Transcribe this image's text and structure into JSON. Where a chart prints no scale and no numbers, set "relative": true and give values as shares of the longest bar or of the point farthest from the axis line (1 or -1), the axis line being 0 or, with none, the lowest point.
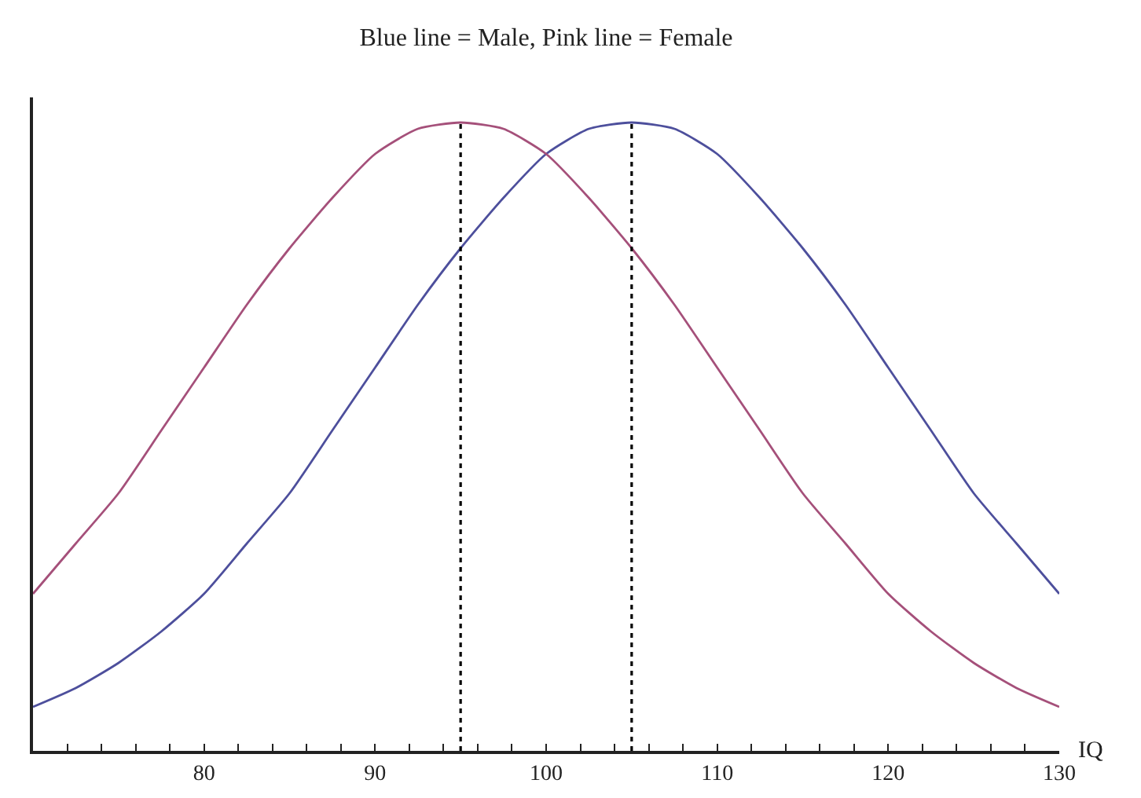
{
  "chart_data": {
    "type": "line",
    "title": "Blue line = Male, Pink line = Female",
    "xlabel": "IQ",
    "relative": true,
    "x": [
      70,
      72.5,
      75,
      77.5,
      80,
      82.5,
      85,
      87.5,
      90,
      92.5,
      95,
      97.5,
      100,
      102.5,
      105,
      107.5,
      110,
      112.5,
      115,
      117.5,
      120,
      122.5,
      125,
      127.5,
      130
    ],
    "series": [
      {
        "color": "#4d4f9c",
        "values": [
          0.07,
          0.1,
          0.14,
          0.19,
          0.25,
          0.33,
          0.41,
          0.51,
          0.61,
          0.71,
          0.8,
          0.88,
          0.95,
          0.99,
          1,
          0.99,
          0.95,
          0.88,
          0.8,
          0.71,
          0.61,
          0.51,
          0.41,
          0.33,
          0.25
        ]
      },
      {
        "color": "#a5507a",
        "values": [
          0.25,
          0.33,
          0.41,
          0.51,
          0.61,
          0.71,
          0.8,
          0.88,
          0.95,
          0.99,
          1,
          0.99,
          0.95,
          0.88,
          0.8,
          0.71,
          0.61,
          0.51,
          0.41,
          0.33,
          0.25,
          0.19,
          0.14,
          0.1,
          0.07
        ]
      }
    ],
    "xlim": [
      70,
      130
    ],
    "xticks": [
      {
        "value": 72,
        "label": null
      },
      {
        "value": 74,
        "label": null
      },
      {
        "value": 76,
        "label": null
      },
      {
        "value": 78,
        "label": null
      },
      80,
      {
        "value": 82,
        "label": null
      },
      {
        "value": 84,
        "label": null
      },
      {
        "value": 86,
        "label": null
      },
      {
        "value": 88,
        "label": null
      },
      90,
      {
        "value": 92,
        "label": null
      },
      {
        "value": 94,
        "label": null
      },
      {
        "value": 96,
        "label": null
      },
      {
        "value": 98,
        "label": null
      },
      100,
      {
        "value": 102,
        "label": null
      },
      {
        "value": 104,
        "label": null
      },
      {
        "value": 106,
        "label": null
      },
      {
        "value": 108,
        "label": null
      },
      110,
      {
        "value": 112,
        "label": null
      },
      {
        "value": 114,
        "label": null
      },
      {
        "value": 116,
        "label": null
      },
      {
        "value": 118,
        "label": null
      },
      120,
      {
        "value": 122,
        "label": null
      },
      {
        "value": 124,
        "label": null
      },
      {
        "value": 126,
        "label": null
      },
      {
        "value": 128,
        "label": null
      },
      130
    ],
    "ref_lines": [
      {
        "axis": "x",
        "value": 95,
        "color": "#000000",
        "line_style": "dotted"
      },
      {
        "axis": "x",
        "value": 105,
        "color": "#000000",
        "line_style": "dotted"
      }
    ],
    "marker": "none",
    "line_style": "solid"
  }
}
